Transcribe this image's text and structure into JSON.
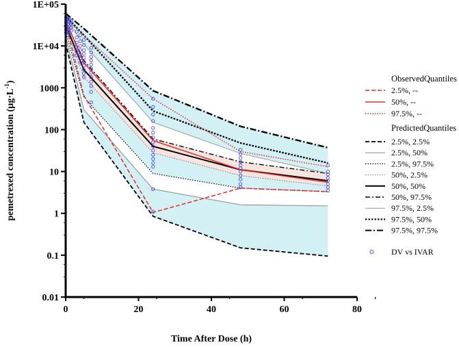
{
  "chart_data": {
    "type": "line",
    "title": "",
    "xlabel": "Time After Dose (h)",
    "ylabel_main": "pemetrexed concentration (µg·L",
    "ylabel_sup": "-1",
    "ylabel_close": ")",
    "xlim": [
      0,
      80
    ],
    "ylim": [
      0.01,
      100000
    ],
    "yscale": "log",
    "x_ticks": [
      0,
      20,
      40,
      60,
      80
    ],
    "x_tick_labels": [
      "0",
      "20",
      "40",
      "60",
      "80"
    ],
    "y_ticks": [
      0.01,
      0.1,
      1,
      10,
      100,
      1000,
      10000,
      100000
    ],
    "y_tick_labels": [
      "0.01",
      "0.1",
      "1",
      "10",
      "100",
      "1000",
      "1E+04",
      "1E+05"
    ],
    "x": [
      0,
      5,
      24,
      48,
      72
    ],
    "observed_title": "ObservedQuantiles",
    "observed": [
      {
        "name": "2.5%, --",
        "values": [
          35000,
          650,
          1.05,
          4.0,
          3.3
        ],
        "color": "#e8262a",
        "dash": "6 3"
      },
      {
        "name": "50%, --",
        "values": [
          40000,
          4000,
          55,
          11,
          5.5
        ],
        "color": "#e8262a",
        "dash": ""
      },
      {
        "name": "97.5%, --",
        "values": [
          45000,
          18000,
          550,
          30,
          13
        ],
        "color": "#e8262a",
        "dash": "1.5 2"
      }
    ],
    "predicted_title": "PredictedQuantiles",
    "predicted": [
      {
        "name": "2.5%, 2.5%",
        "values": [
          12000,
          150,
          0.85,
          0.15,
          0.095
        ],
        "color": "#000000",
        "dash": "6 3",
        "width": 1.8
      },
      {
        "name": "2.5%, 50%",
        "values": [
          17000,
          300,
          3.8,
          1.6,
          1.5
        ],
        "color": "#888888",
        "dash": "",
        "width": 1
      },
      {
        "name": "2.5%, 97.5%",
        "values": [
          22000,
          600,
          9,
          4,
          3.3
        ],
        "color": "#000000",
        "dash": "1.5 2",
        "width": 1.2
      },
      {
        "name": "50%, 2.5%",
        "values": [
          28000,
          1800,
          28,
          8,
          4.5
        ],
        "color": "#777777",
        "dash": "1.5 2",
        "width": 1
      },
      {
        "name": "50%, 50%",
        "values": [
          32000,
          2700,
          40,
          11,
          6
        ],
        "color": "#000000",
        "dash": "",
        "width": 2
      },
      {
        "name": "50%, 97.5%",
        "values": [
          38000,
          4500,
          60,
          17,
          9
        ],
        "color": "#000000",
        "dash": "7 3 2 3",
        "width": 1.4
      },
      {
        "name": "97.5%, 2.5%",
        "values": [
          45000,
          11000,
          150,
          27,
          9
        ],
        "color": "#999999",
        "dash": "",
        "width": 1
      },
      {
        "name": "97.5%, 50%",
        "values": [
          52000,
          18000,
          280,
          48,
          16
        ],
        "color": "#000000",
        "dash": "2.5 2",
        "width": 2.4
      },
      {
        "name": "97.5%, 97.5%",
        "values": [
          60000,
          26000,
          850,
          120,
          37
        ],
        "color": "#000000",
        "dash": "9 3 2 3",
        "width": 2.4
      }
    ],
    "band_outer": {
      "lower": [
        12000,
        150,
        0.85,
        0.15,
        0.095
      ],
      "upper": [
        60000,
        26000,
        850,
        120,
        37
      ],
      "color": "#d3f0f5"
    },
    "band_mid_upper": {
      "lower": [
        38000,
        4500,
        60,
        17,
        9
      ],
      "upper": [
        45000,
        11000,
        150,
        27,
        9
      ],
      "color": "#ffffff"
    },
    "band_median": {
      "lower": [
        28000,
        1800,
        28,
        8,
        4.5
      ],
      "upper": [
        38000,
        4500,
        60,
        17,
        9
      ],
      "color": "#f6e4df"
    },
    "band_mid_lower": {
      "lower": [
        17000,
        300,
        3.8,
        1.6,
        1.5
      ],
      "upper": [
        22000,
        600,
        9,
        4,
        3.3
      ],
      "color": "#ffffff"
    },
    "dv_label": "DV vs IVAR",
    "dv_color": "#4a4ae6",
    "dv_points": [
      [
        0.1,
        48000
      ],
      [
        0.1,
        42000
      ],
      [
        0.1,
        36000
      ],
      [
        0.1,
        30000
      ],
      [
        0.1,
        25000
      ],
      [
        0.1,
        21000
      ],
      [
        0.6,
        45000
      ],
      [
        0.6,
        38000
      ],
      [
        0.6,
        32000
      ],
      [
        0.6,
        27000
      ],
      [
        0.6,
        22000
      ],
      [
        0.6,
        18000
      ],
      [
        1,
        44000
      ],
      [
        1,
        37000
      ],
      [
        1,
        30000
      ],
      [
        1,
        25000
      ],
      [
        1,
        20000
      ],
      [
        1.5,
        40000
      ],
      [
        1.5,
        34000
      ],
      [
        1.5,
        28000
      ],
      [
        1.5,
        23000
      ],
      [
        3,
        22000
      ],
      [
        3,
        16000
      ],
      [
        3,
        12000
      ],
      [
        3,
        9500
      ],
      [
        3,
        7500
      ],
      [
        3,
        6000
      ],
      [
        4,
        18000
      ],
      [
        4,
        13000
      ],
      [
        4,
        10000
      ],
      [
        4,
        8000
      ],
      [
        4,
        6200
      ],
      [
        4,
        5000
      ],
      [
        4,
        4000
      ],
      [
        5,
        14000
      ],
      [
        5,
        10500
      ],
      [
        5,
        8000
      ],
      [
        5,
        6500
      ],
      [
        5,
        5200
      ],
      [
        5,
        4200
      ],
      [
        5,
        3400
      ],
      [
        5,
        2700
      ],
      [
        5,
        2200
      ],
      [
        5,
        1800
      ],
      [
        7,
        9000
      ],
      [
        7,
        7000
      ],
      [
        7,
        5500
      ],
      [
        7,
        4500
      ],
      [
        7,
        3600
      ],
      [
        7,
        2900
      ],
      [
        7,
        2300
      ],
      [
        7,
        1800
      ],
      [
        7,
        1400
      ],
      [
        7,
        1100
      ],
      [
        7,
        800
      ],
      [
        7,
        450
      ],
      [
        24,
        550
      ],
      [
        24,
        350
      ],
      [
        24,
        230
      ],
      [
        24,
        160
      ],
      [
        24,
        110
      ],
      [
        24,
        85
      ],
      [
        24,
        65
      ],
      [
        24,
        50
      ],
      [
        24,
        40
      ],
      [
        24,
        32
      ],
      [
        24,
        25
      ],
      [
        24,
        20
      ],
      [
        24,
        16
      ],
      [
        24,
        13
      ],
      [
        24,
        3.8
      ],
      [
        24,
        1.1
      ],
      [
        48,
        33
      ],
      [
        48,
        26
      ],
      [
        48,
        21
      ],
      [
        48,
        17
      ],
      [
        48,
        14
      ],
      [
        48,
        12
      ],
      [
        48,
        10
      ],
      [
        48,
        8
      ],
      [
        48,
        6.5
      ],
      [
        48,
        5
      ],
      [
        48,
        4.2
      ],
      [
        72,
        14
      ],
      [
        72,
        10
      ],
      [
        72,
        8.5
      ],
      [
        72,
        7
      ],
      [
        72,
        6
      ],
      [
        72,
        5
      ],
      [
        72,
        4.2
      ],
      [
        72,
        3.5
      ]
    ]
  }
}
